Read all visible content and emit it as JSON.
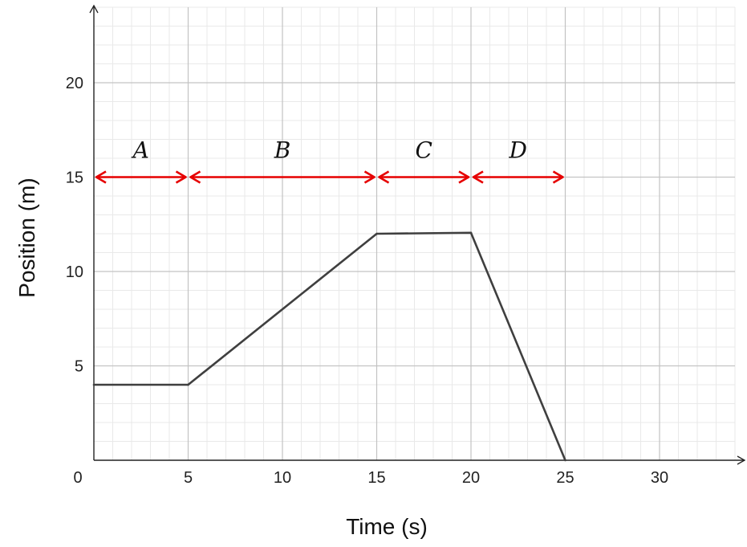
{
  "chart_data": {
    "type": "line",
    "xlabel": "Time (s)",
    "ylabel": "Position (m)",
    "xlim": [
      0,
      34
    ],
    "ylim": [
      0,
      24
    ],
    "x_ticks": [
      {
        "value": 0,
        "label": "0"
      },
      {
        "value": 5,
        "label": "5"
      },
      {
        "value": 10,
        "label": "10"
      },
      {
        "value": 15,
        "label": "15"
      },
      {
        "value": 20,
        "label": "20"
      },
      {
        "value": 25,
        "label": "25"
      },
      {
        "value": 30,
        "label": "30"
      }
    ],
    "y_ticks": [
      {
        "value": 5,
        "label": "5"
      },
      {
        "value": 10,
        "label": "10"
      },
      {
        "value": 15,
        "label": "15"
      },
      {
        "value": 20,
        "label": "20"
      }
    ],
    "major_grid_step": 5,
    "minor_grid_step": 1,
    "grid": true,
    "series": [
      {
        "x": [
          0,
          5,
          15,
          20,
          25
        ],
        "y": [
          4,
          4,
          12,
          12.05,
          0
        ],
        "color": "#3f3f3f"
      }
    ],
    "intervals": [
      {
        "label": "A",
        "x_start": 0,
        "x_end": 5,
        "y": 15
      },
      {
        "label": "B",
        "x_start": 5,
        "x_end": 15,
        "y": 15
      },
      {
        "label": "C",
        "x_start": 15,
        "x_end": 20,
        "y": 15
      },
      {
        "label": "D",
        "x_start": 20,
        "x_end": 25,
        "y": 15
      }
    ],
    "interval_color": "#e60000"
  }
}
